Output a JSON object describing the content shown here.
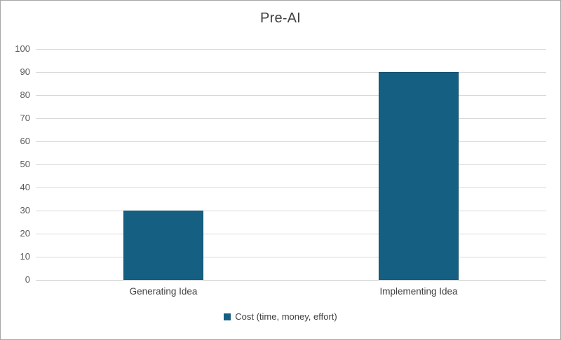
{
  "chart_data": {
    "type": "bar",
    "title": "Pre-AI",
    "categories": [
      "Generating Idea",
      "Implementing Idea"
    ],
    "series": [
      {
        "name": "Cost (time, money, effort)",
        "values": [
          30,
          90
        ]
      }
    ],
    "ylim": [
      0,
      100
    ],
    "ytick_step": 10,
    "yticks": [
      0,
      10,
      20,
      30,
      40,
      50,
      60,
      70,
      80,
      90,
      100
    ],
    "grid": true,
    "legend_position": "bottom",
    "colors": {
      "bar_fill": "#156082",
      "bar_border": "#11506e",
      "gridline": "#d9d9d9",
      "axis_line": "#c8c8c8",
      "tick_text": "#595959",
      "title_text": "#404040",
      "frame_border": "#a6a6a6"
    }
  }
}
